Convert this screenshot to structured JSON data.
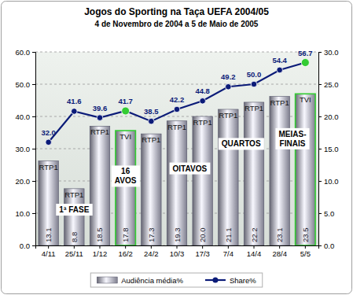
{
  "chart_data": {
    "type": "bar",
    "title": "Jogos do Sporting na Taça UEFA 2004/05",
    "subtitle": "4 de Novembro de 2004 a 5 de Maio de 2005",
    "categories": [
      "4/11",
      "25/11",
      "1/12",
      "16/2",
      "24/2",
      "10/3",
      "17/3",
      "7/4",
      "14/4",
      "28/4",
      "5/5"
    ],
    "series": [
      {
        "name": "Audiência média%",
        "type": "bar",
        "axis": "y2",
        "color": "#9c9cb0",
        "values": [
          13.1,
          8.8,
          18.5,
          17.8,
          17.3,
          19.3,
          20.0,
          21.1,
          22.2,
          23.1,
          23.5
        ],
        "value_labels": [
          "13.1",
          "8.8",
          "18.5",
          "17.8",
          "17.3",
          "19.3",
          "20.0",
          "21.1",
          "22.2",
          "23.1",
          "23.5"
        ],
        "channel_labels": [
          "RTP1",
          "RTP1",
          "RTP1",
          "TVI",
          "RTP1",
          "RTP1",
          "RTP1",
          "RTP1",
          "RTP1",
          "RTP1",
          "TVI"
        ]
      },
      {
        "name": "Share%",
        "type": "line",
        "color": "#0b1b78",
        "marker": "circle",
        "colors": [
          "#0b1b78",
          "#0b1b78",
          "#0b1b78",
          "#33cc33",
          "#0b1b78",
          "#0b1b78",
          "#0b1b78",
          "#0b1b78",
          "#0b1b78",
          "#0b1b78",
          "#33cc33"
        ],
        "values": [
          32.0,
          41.6,
          39.6,
          41.7,
          38.5,
          42.2,
          44.8,
          49.2,
          50.0,
          54.4,
          56.7
        ],
        "value_labels": [
          "32.0",
          "41.6",
          "39.6",
          "41.7",
          "38.5",
          "42.2",
          "44.8",
          "49.2",
          "50.0",
          "54.4",
          "56.7"
        ]
      }
    ],
    "annotations": [
      "1ª FASE",
      "16 AVOS",
      "OITAVOS",
      "QUARTOS",
      "MEIAS-FINAIS"
    ],
    "ylim": [
      0,
      60
    ],
    "yticks": [
      {
        "value": 0,
        "label": "0.0"
      },
      {
        "value": 10,
        "label": "10.0"
      },
      {
        "value": 20,
        "label": "20.0"
      },
      {
        "value": 30,
        "label": "30.0"
      },
      {
        "value": 40,
        "label": "40.0"
      },
      {
        "value": 50,
        "label": "50.0"
      },
      {
        "value": 60,
        "label": "60.0"
      }
    ],
    "y2lim": [
      0,
      30
    ],
    "y2ticks": [
      {
        "value": 0,
        "label": "0.0"
      },
      {
        "value": 5,
        "label": "5.0"
      },
      {
        "value": 10,
        "label": "10.0"
      },
      {
        "value": 15,
        "label": "15.0"
      },
      {
        "value": 20,
        "label": "20.0"
      },
      {
        "value": 25,
        "label": "25.0"
      },
      {
        "value": 30,
        "label": "30.0"
      }
    ],
    "grid": true,
    "data_labels": true,
    "legend": "bottom"
  }
}
